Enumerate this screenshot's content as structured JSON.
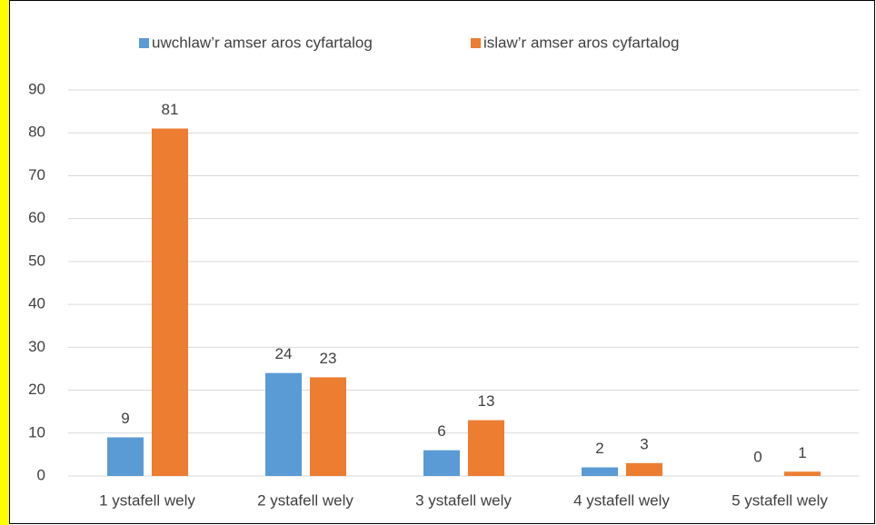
{
  "chart_data": {
    "type": "bar",
    "categories": [
      "1 ystafell wely",
      "2 ystafell wely",
      "3 ystafell wely",
      "4 ystafell wely",
      "5 ystafell wely"
    ],
    "series": [
      {
        "name": "uwchlaw’r amser aros cyfartalog",
        "color": "#5b9bd5",
        "values": [
          9,
          24,
          6,
          2,
          0
        ]
      },
      {
        "name": "islaw’r amser aros cyfartalog",
        "color": "#ed7d31",
        "values": [
          81,
          23,
          13,
          3,
          1
        ]
      }
    ],
    "ylim": [
      0,
      90
    ],
    "yticks": [
      0,
      10,
      20,
      30,
      40,
      50,
      60,
      70,
      80,
      90
    ],
    "grid": true,
    "legend": "top"
  }
}
